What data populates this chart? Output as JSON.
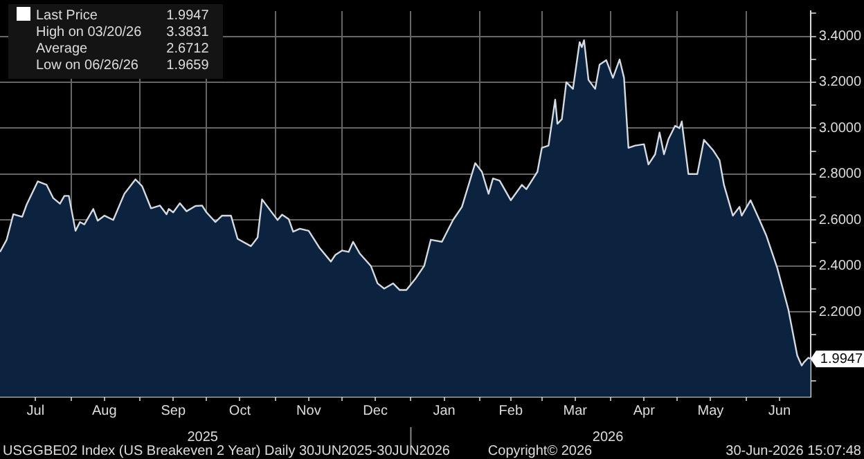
{
  "chart_data": {
    "type": "area",
    "x": [
      "2025-06-30",
      "2025-07-03",
      "2025-07-06",
      "2025-07-10",
      "2025-07-12",
      "2025-07-17",
      "2025-07-21",
      "2025-07-24",
      "2025-07-27",
      "2025-07-29",
      "2025-07-31",
      "2025-08-03",
      "2025-08-05",
      "2025-08-07",
      "2025-08-11",
      "2025-08-13",
      "2025-08-16",
      "2025-08-20",
      "2025-08-25",
      "2025-08-30",
      "2025-09-02",
      "2025-09-06",
      "2025-09-10",
      "2025-09-13",
      "2025-09-14",
      "2025-09-16",
      "2025-09-19",
      "2025-09-22",
      "2025-09-26",
      "2025-09-29",
      "2025-10-01",
      "2025-10-05",
      "2025-10-08",
      "2025-10-12",
      "2025-10-15",
      "2025-10-21",
      "2025-10-24",
      "2025-10-26",
      "2025-10-30",
      "2025-11-02",
      "2025-11-04",
      "2025-11-07",
      "2025-11-09",
      "2025-11-12",
      "2025-11-16",
      "2025-11-21",
      "2025-11-26",
      "2025-11-28",
      "2025-12-01",
      "2025-12-04",
      "2025-12-06",
      "2025-12-09",
      "2025-12-14",
      "2025-12-17",
      "2025-12-20",
      "2025-12-24",
      "2025-12-27",
      "2025-12-30",
      "2026-01-03",
      "2026-01-07",
      "2026-01-10",
      "2026-01-15",
      "2026-01-20",
      "2026-01-24",
      "2026-01-30",
      "2026-02-02",
      "2026-02-05",
      "2026-02-07",
      "2026-02-10",
      "2026-02-15",
      "2026-02-20",
      "2026-02-22",
      "2026-02-27",
      "2026-03-01",
      "2026-03-04",
      "2026-03-07",
      "2026-03-08",
      "2026-03-10",
      "2026-03-12",
      "2026-03-15",
      "2026-03-18",
      "2026-03-19",
      "2026-03-20",
      "2026-03-22",
      "2026-03-25",
      "2026-03-27",
      "2026-03-30",
      "2026-04-02",
      "2026-04-05",
      "2026-04-07",
      "2026-04-09",
      "2026-04-12",
      "2026-04-16",
      "2026-04-18",
      "2026-04-21",
      "2026-04-23",
      "2026-04-25",
      "2026-04-27",
      "2026-04-30",
      "2026-05-02",
      "2026-05-03",
      "2026-05-06",
      "2026-05-10",
      "2026-05-13",
      "2026-05-17",
      "2026-05-20",
      "2026-05-22",
      "2026-05-26",
      "2026-05-29",
      "2026-05-30",
      "2026-06-03",
      "2026-06-07",
      "2026-06-10",
      "2026-06-15",
      "2026-06-20",
      "2026-06-24",
      "2026-06-26",
      "2026-06-27",
      "2026-06-29",
      "2026-06-30"
    ],
    "series": [
      {
        "name": "Last Price",
        "color": "#0c2340",
        "values": [
          2.461,
          2.514,
          2.625,
          2.614,
          2.667,
          2.768,
          2.753,
          2.695,
          2.671,
          2.705,
          2.705,
          2.553,
          2.591,
          2.581,
          2.648,
          2.597,
          2.619,
          2.6,
          2.714,
          2.777,
          2.747,
          2.651,
          2.663,
          2.625,
          2.648,
          2.633,
          2.673,
          2.638,
          2.661,
          2.663,
          2.633,
          2.591,
          2.619,
          2.619,
          2.518,
          2.486,
          2.524,
          2.69,
          2.638,
          2.6,
          2.623,
          2.604,
          2.549,
          2.562,
          2.553,
          2.477,
          2.419,
          2.448,
          2.467,
          2.461,
          2.505,
          2.454,
          2.4,
          2.324,
          2.301,
          2.324,
          2.295,
          2.295,
          2.343,
          2.4,
          2.514,
          2.505,
          2.6,
          2.657,
          2.848,
          2.81,
          2.714,
          2.781,
          2.771,
          2.686,
          2.753,
          2.734,
          2.81,
          2.914,
          2.924,
          3.124,
          3.019,
          3.039,
          3.2,
          3.171,
          3.375,
          3.353,
          3.383,
          3.21,
          3.171,
          3.277,
          3.296,
          3.219,
          3.299,
          3.219,
          2.914,
          2.924,
          2.93,
          2.842,
          2.886,
          2.981,
          2.886,
          2.952,
          3.01,
          3.0,
          3.029,
          2.8,
          2.8,
          2.949,
          2.905,
          2.861,
          2.753,
          2.619,
          2.657,
          2.619,
          2.686,
          2.6,
          2.534,
          2.391,
          2.21,
          2.01,
          1.966,
          1.98,
          2.0,
          1.995
        ]
      }
    ],
    "xlim": [
      "2025-06-30",
      "2026-06-30"
    ],
    "xticks": [
      {
        "value": "2025-07-16",
        "label": "Jul"
      },
      {
        "value": "2025-08-01",
        "label": null
      },
      {
        "value": "2025-08-16",
        "label": "Aug"
      },
      {
        "value": "2025-09-01",
        "label": null
      },
      {
        "value": "2025-09-16",
        "label": "Sep"
      },
      {
        "value": "2025-10-01",
        "label": null
      },
      {
        "value": "2025-10-16",
        "label": "Oct"
      },
      {
        "value": "2025-11-01",
        "label": null
      },
      {
        "value": "2025-11-16",
        "label": "Nov"
      },
      {
        "value": "2025-12-01",
        "label": null
      },
      {
        "value": "2025-12-16",
        "label": "Dec"
      },
      {
        "value": "2026-01-01",
        "label": null
      },
      {
        "value": "2026-01-16",
        "label": "Jan"
      },
      {
        "value": "2026-02-01",
        "label": null
      },
      {
        "value": "2026-02-15",
        "label": "Feb"
      },
      {
        "value": "2026-03-01",
        "label": null
      },
      {
        "value": "2026-03-16",
        "label": "Mar"
      },
      {
        "value": "2026-04-01",
        "label": null
      },
      {
        "value": "2026-04-16",
        "label": "Apr"
      },
      {
        "value": "2026-05-01",
        "label": null
      },
      {
        "value": "2026-05-16",
        "label": "May"
      },
      {
        "value": "2026-06-01",
        "label": null
      },
      {
        "value": "2026-06-16",
        "label": "Jun"
      }
    ],
    "ylim": [
      1.83,
      3.51
    ],
    "yticks": [
      {
        "value": 1.9,
        "label": null
      },
      {
        "value": 2,
        "label": null
      },
      {
        "value": 2.1,
        "label": null
      },
      {
        "value": 2.2,
        "label": "2.2000"
      },
      {
        "value": 2.3,
        "label": null
      },
      {
        "value": 2.4,
        "label": "2.4000"
      },
      {
        "value": 2.5,
        "label": null
      },
      {
        "value": 2.6,
        "label": "2.6000"
      },
      {
        "value": 2.7,
        "label": null
      },
      {
        "value": 2.8,
        "label": "2.8000"
      },
      {
        "value": 2.9,
        "label": null
      },
      {
        "value": 3,
        "label": "3.0000"
      },
      {
        "value": 3.1,
        "label": null
      },
      {
        "value": 3.2,
        "label": "3.2000"
      },
      {
        "value": 3.3,
        "label": null
      },
      {
        "value": 3.4,
        "label": "3.4000"
      },
      {
        "value": 3.5,
        "label": null
      }
    ],
    "grid": true,
    "legend": "top left",
    "annotations": [
      "1.9947",
      "High on 03/20/26",
      "3.3831",
      "Average",
      "2.6712",
      "Low on 06/26/26",
      "1.9659",
      "1.9947",
      "2025",
      "2026",
      "USGGBE02 Index (US Breakeven 2 Year) Daily 30JUN2025-30JUN2026",
      "Copyright© 2026",
      "30-Jun-2026 15:07:48"
    ]
  }
}
